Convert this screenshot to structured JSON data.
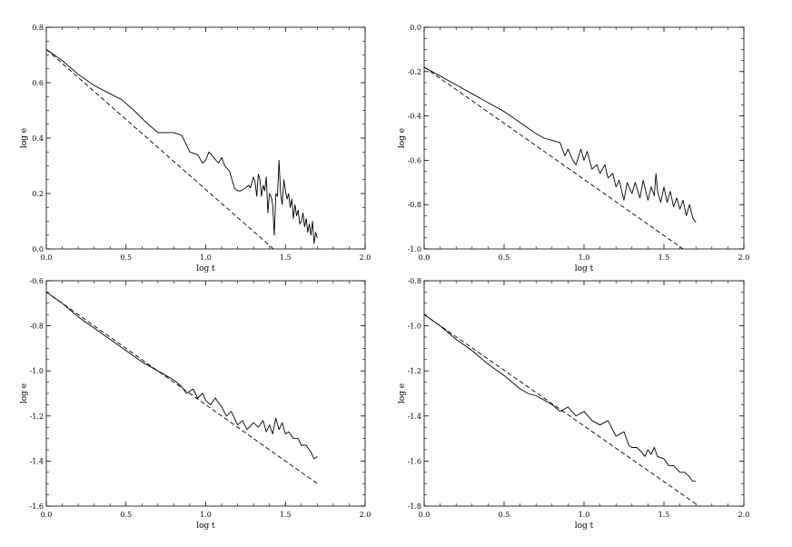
{
  "chart_data": [
    {
      "type": "line",
      "xlabel": "log t",
      "ylabel": "log e",
      "xlim": [
        0.0,
        2.0
      ],
      "ylim": [
        0.0,
        0.8
      ],
      "xticks": [
        "0.0",
        "0.5",
        "1.0",
        "1.5",
        "2.0"
      ],
      "yticks": [
        "0.0",
        "0.2",
        "0.4",
        "0.6",
        "0.8"
      ],
      "grid": false,
      "series": [
        {
          "style": "solid",
          "x": [
            0.0,
            0.1,
            0.2,
            0.3,
            0.4,
            0.47,
            0.55,
            0.62,
            0.7,
            0.75,
            0.8,
            0.85,
            0.9,
            0.95,
            0.98,
            1.0,
            1.02,
            1.05,
            1.08,
            1.1,
            1.12,
            1.15,
            1.18,
            1.2,
            1.22,
            1.25,
            1.27,
            1.28,
            1.3,
            1.31,
            1.32,
            1.33,
            1.34,
            1.35,
            1.36,
            1.37,
            1.38,
            1.39,
            1.4,
            1.41,
            1.42,
            1.43,
            1.44,
            1.45,
            1.46,
            1.47,
            1.48,
            1.49,
            1.5,
            1.51,
            1.52,
            1.53,
            1.54,
            1.55,
            1.56,
            1.57,
            1.58,
            1.59,
            1.6,
            1.61,
            1.62,
            1.63,
            1.64,
            1.65,
            1.66,
            1.67,
            1.68,
            1.69,
            1.7
          ],
          "y": [
            0.72,
            0.68,
            0.63,
            0.59,
            0.56,
            0.54,
            0.5,
            0.46,
            0.42,
            0.42,
            0.42,
            0.41,
            0.35,
            0.34,
            0.31,
            0.32,
            0.35,
            0.33,
            0.31,
            0.33,
            0.3,
            0.28,
            0.22,
            0.21,
            0.21,
            0.22,
            0.23,
            0.22,
            0.26,
            0.24,
            0.19,
            0.27,
            0.25,
            0.19,
            0.23,
            0.21,
            0.26,
            0.13,
            0.2,
            0.19,
            0.16,
            0.05,
            0.2,
            0.19,
            0.32,
            0.2,
            0.16,
            0.25,
            0.21,
            0.18,
            0.2,
            0.15,
            0.18,
            0.11,
            0.16,
            0.12,
            0.14,
            0.09,
            0.1,
            0.13,
            0.08,
            0.11,
            0.06,
            0.09,
            0.05,
            0.1,
            0.02,
            0.06,
            0.04
          ]
        },
        {
          "style": "dashed",
          "x": [
            0.0,
            1.425
          ],
          "y": [
            0.72,
            0.0
          ]
        }
      ]
    },
    {
      "type": "line",
      "xlabel": "log t",
      "ylabel": "log e",
      "xlim": [
        0.0,
        2.0
      ],
      "ylim": [
        -1.0,
        0.0
      ],
      "xticks": [
        "0.0",
        "0.5",
        "1.0",
        "1.5",
        "2.0"
      ],
      "yticks": [
        "-1.0",
        "-0.8",
        "-0.6",
        "-0.4",
        "-0.2",
        "0.0"
      ],
      "grid": false,
      "series": [
        {
          "style": "solid",
          "x": [
            0.0,
            0.1,
            0.2,
            0.3,
            0.4,
            0.5,
            0.6,
            0.7,
            0.75,
            0.8,
            0.85,
            0.88,
            0.9,
            0.93,
            0.95,
            0.98,
            1.0,
            1.02,
            1.05,
            1.08,
            1.1,
            1.13,
            1.15,
            1.18,
            1.2,
            1.22,
            1.25,
            1.27,
            1.3,
            1.32,
            1.35,
            1.37,
            1.4,
            1.42,
            1.44,
            1.45,
            1.46,
            1.48,
            1.5,
            1.52,
            1.54,
            1.56,
            1.58,
            1.6,
            1.62,
            1.64,
            1.66,
            1.68,
            1.7
          ],
          "y": [
            -0.18,
            -0.22,
            -0.26,
            -0.3,
            -0.34,
            -0.38,
            -0.43,
            -0.48,
            -0.5,
            -0.51,
            -0.52,
            -0.58,
            -0.55,
            -0.6,
            -0.62,
            -0.55,
            -0.6,
            -0.56,
            -0.64,
            -0.62,
            -0.66,
            -0.62,
            -0.68,
            -0.66,
            -0.72,
            -0.69,
            -0.78,
            -0.7,
            -0.75,
            -0.7,
            -0.77,
            -0.69,
            -0.78,
            -0.72,
            -0.76,
            -0.66,
            -0.74,
            -0.79,
            -0.72,
            -0.79,
            -0.74,
            -0.81,
            -0.77,
            -0.82,
            -0.78,
            -0.85,
            -0.8,
            -0.86,
            -0.88
          ]
        },
        {
          "style": "dashed",
          "x": [
            0.0,
            1.62
          ],
          "y": [
            -0.18,
            -1.0
          ]
        }
      ]
    },
    {
      "type": "line",
      "xlabel": "log t",
      "ylabel": "log e",
      "xlim": [
        0.0,
        2.0
      ],
      "ylim": [
        -1.6,
        -0.6
      ],
      "xticks": [
        "0.0",
        "0.5",
        "1.0",
        "1.5",
        "2.0"
      ],
      "yticks": [
        "-1.6",
        "-1.4",
        "-1.2",
        "-1.0",
        "-0.8",
        "-0.6"
      ],
      "grid": false,
      "series": [
        {
          "style": "solid",
          "x": [
            0.0,
            0.1,
            0.2,
            0.3,
            0.4,
            0.5,
            0.6,
            0.7,
            0.75,
            0.8,
            0.85,
            0.88,
            0.92,
            0.95,
            0.98,
            1.0,
            1.03,
            1.06,
            1.1,
            1.13,
            1.16,
            1.2,
            1.23,
            1.26,
            1.3,
            1.33,
            1.36,
            1.38,
            1.4,
            1.42,
            1.44,
            1.46,
            1.48,
            1.5,
            1.52,
            1.55,
            1.58,
            1.6,
            1.63,
            1.66,
            1.68,
            1.7
          ],
          "y": [
            -0.65,
            -0.7,
            -0.76,
            -0.81,
            -0.86,
            -0.91,
            -0.96,
            -1.0,
            -1.02,
            -1.04,
            -1.07,
            -1.1,
            -1.08,
            -1.12,
            -1.1,
            -1.13,
            -1.15,
            -1.12,
            -1.16,
            -1.2,
            -1.18,
            -1.24,
            -1.22,
            -1.26,
            -1.23,
            -1.25,
            -1.22,
            -1.27,
            -1.24,
            -1.28,
            -1.21,
            -1.26,
            -1.23,
            -1.28,
            -1.27,
            -1.3,
            -1.3,
            -1.33,
            -1.33,
            -1.36,
            -1.39,
            -1.38
          ]
        },
        {
          "style": "dashed",
          "x": [
            0.0,
            1.7
          ],
          "y": [
            -0.65,
            -1.5
          ]
        }
      ]
    },
    {
      "type": "line",
      "xlabel": "log t",
      "ylabel": "log e",
      "xlim": [
        0.0,
        2.0
      ],
      "ylim": [
        -1.8,
        -0.8
      ],
      "xticks": [
        "0.0",
        "0.5",
        "1.0",
        "1.5",
        "2.0"
      ],
      "yticks": [
        "-1.8",
        "-1.6",
        "-1.4",
        "-1.2",
        "-1.0",
        "-0.8"
      ],
      "grid": false,
      "series": [
        {
          "style": "solid",
          "x": [
            0.0,
            0.1,
            0.2,
            0.3,
            0.4,
            0.5,
            0.6,
            0.65,
            0.7,
            0.75,
            0.8,
            0.85,
            0.9,
            0.95,
            1.0,
            1.05,
            1.1,
            1.15,
            1.2,
            1.25,
            1.28,
            1.3,
            1.33,
            1.36,
            1.38,
            1.4,
            1.42,
            1.44,
            1.46,
            1.5,
            1.53,
            1.56,
            1.6,
            1.63,
            1.66,
            1.68,
            1.7
          ],
          "y": [
            -0.95,
            -1.0,
            -1.06,
            -1.11,
            -1.17,
            -1.22,
            -1.28,
            -1.3,
            -1.31,
            -1.33,
            -1.35,
            -1.38,
            -1.36,
            -1.4,
            -1.38,
            -1.42,
            -1.44,
            -1.42,
            -1.49,
            -1.47,
            -1.53,
            -1.54,
            -1.54,
            -1.56,
            -1.58,
            -1.55,
            -1.57,
            -1.54,
            -1.58,
            -1.59,
            -1.62,
            -1.62,
            -1.65,
            -1.65,
            -1.67,
            -1.69,
            -1.69
          ]
        },
        {
          "style": "dashed",
          "x": [
            0.0,
            1.72
          ],
          "y": [
            -0.95,
            -1.8
          ]
        }
      ]
    }
  ]
}
